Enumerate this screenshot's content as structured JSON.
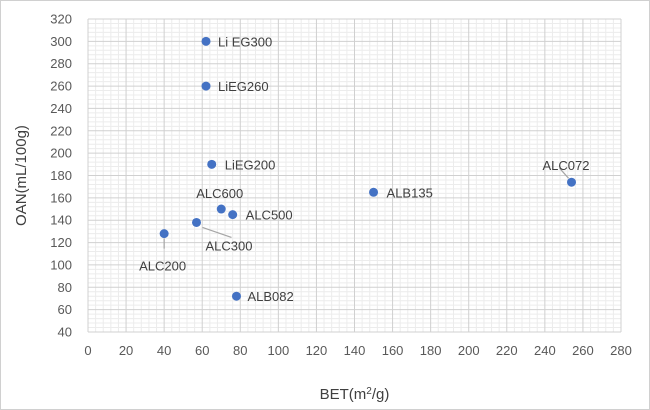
{
  "chart_data": {
    "type": "scatter",
    "xlabel": "BET(m²/g)",
    "ylabel": "OAN(mL/100g)",
    "xlim": [
      0,
      280
    ],
    "ylim": [
      40,
      320
    ],
    "x_ticks": [
      0,
      20,
      40,
      60,
      80,
      100,
      120,
      140,
      160,
      180,
      200,
      220,
      240,
      260,
      280
    ],
    "y_ticks": [
      40,
      60,
      80,
      100,
      120,
      140,
      160,
      180,
      200,
      220,
      240,
      260,
      280,
      300,
      320
    ],
    "grid": true,
    "marker_color": "#4472c4",
    "points": [
      {
        "label": "Li EG300",
        "x": 62,
        "y": 300
      },
      {
        "label": "LiEG260",
        "x": 62,
        "y": 260
      },
      {
        "label": "LiEG200",
        "x": 65,
        "y": 190
      },
      {
        "label": "ALC600",
        "x": 70,
        "y": 150
      },
      {
        "label": "ALC500",
        "x": 76,
        "y": 145
      },
      {
        "label": "ALC300",
        "x": 57,
        "y": 138
      },
      {
        "label": "ALC200",
        "x": 40,
        "y": 128
      },
      {
        "label": "ALB082",
        "x": 78,
        "y": 72
      },
      {
        "label": "ALB135",
        "x": 150,
        "y": 165
      },
      {
        "label": "ALC072",
        "x": 254,
        "y": 174
      }
    ]
  }
}
